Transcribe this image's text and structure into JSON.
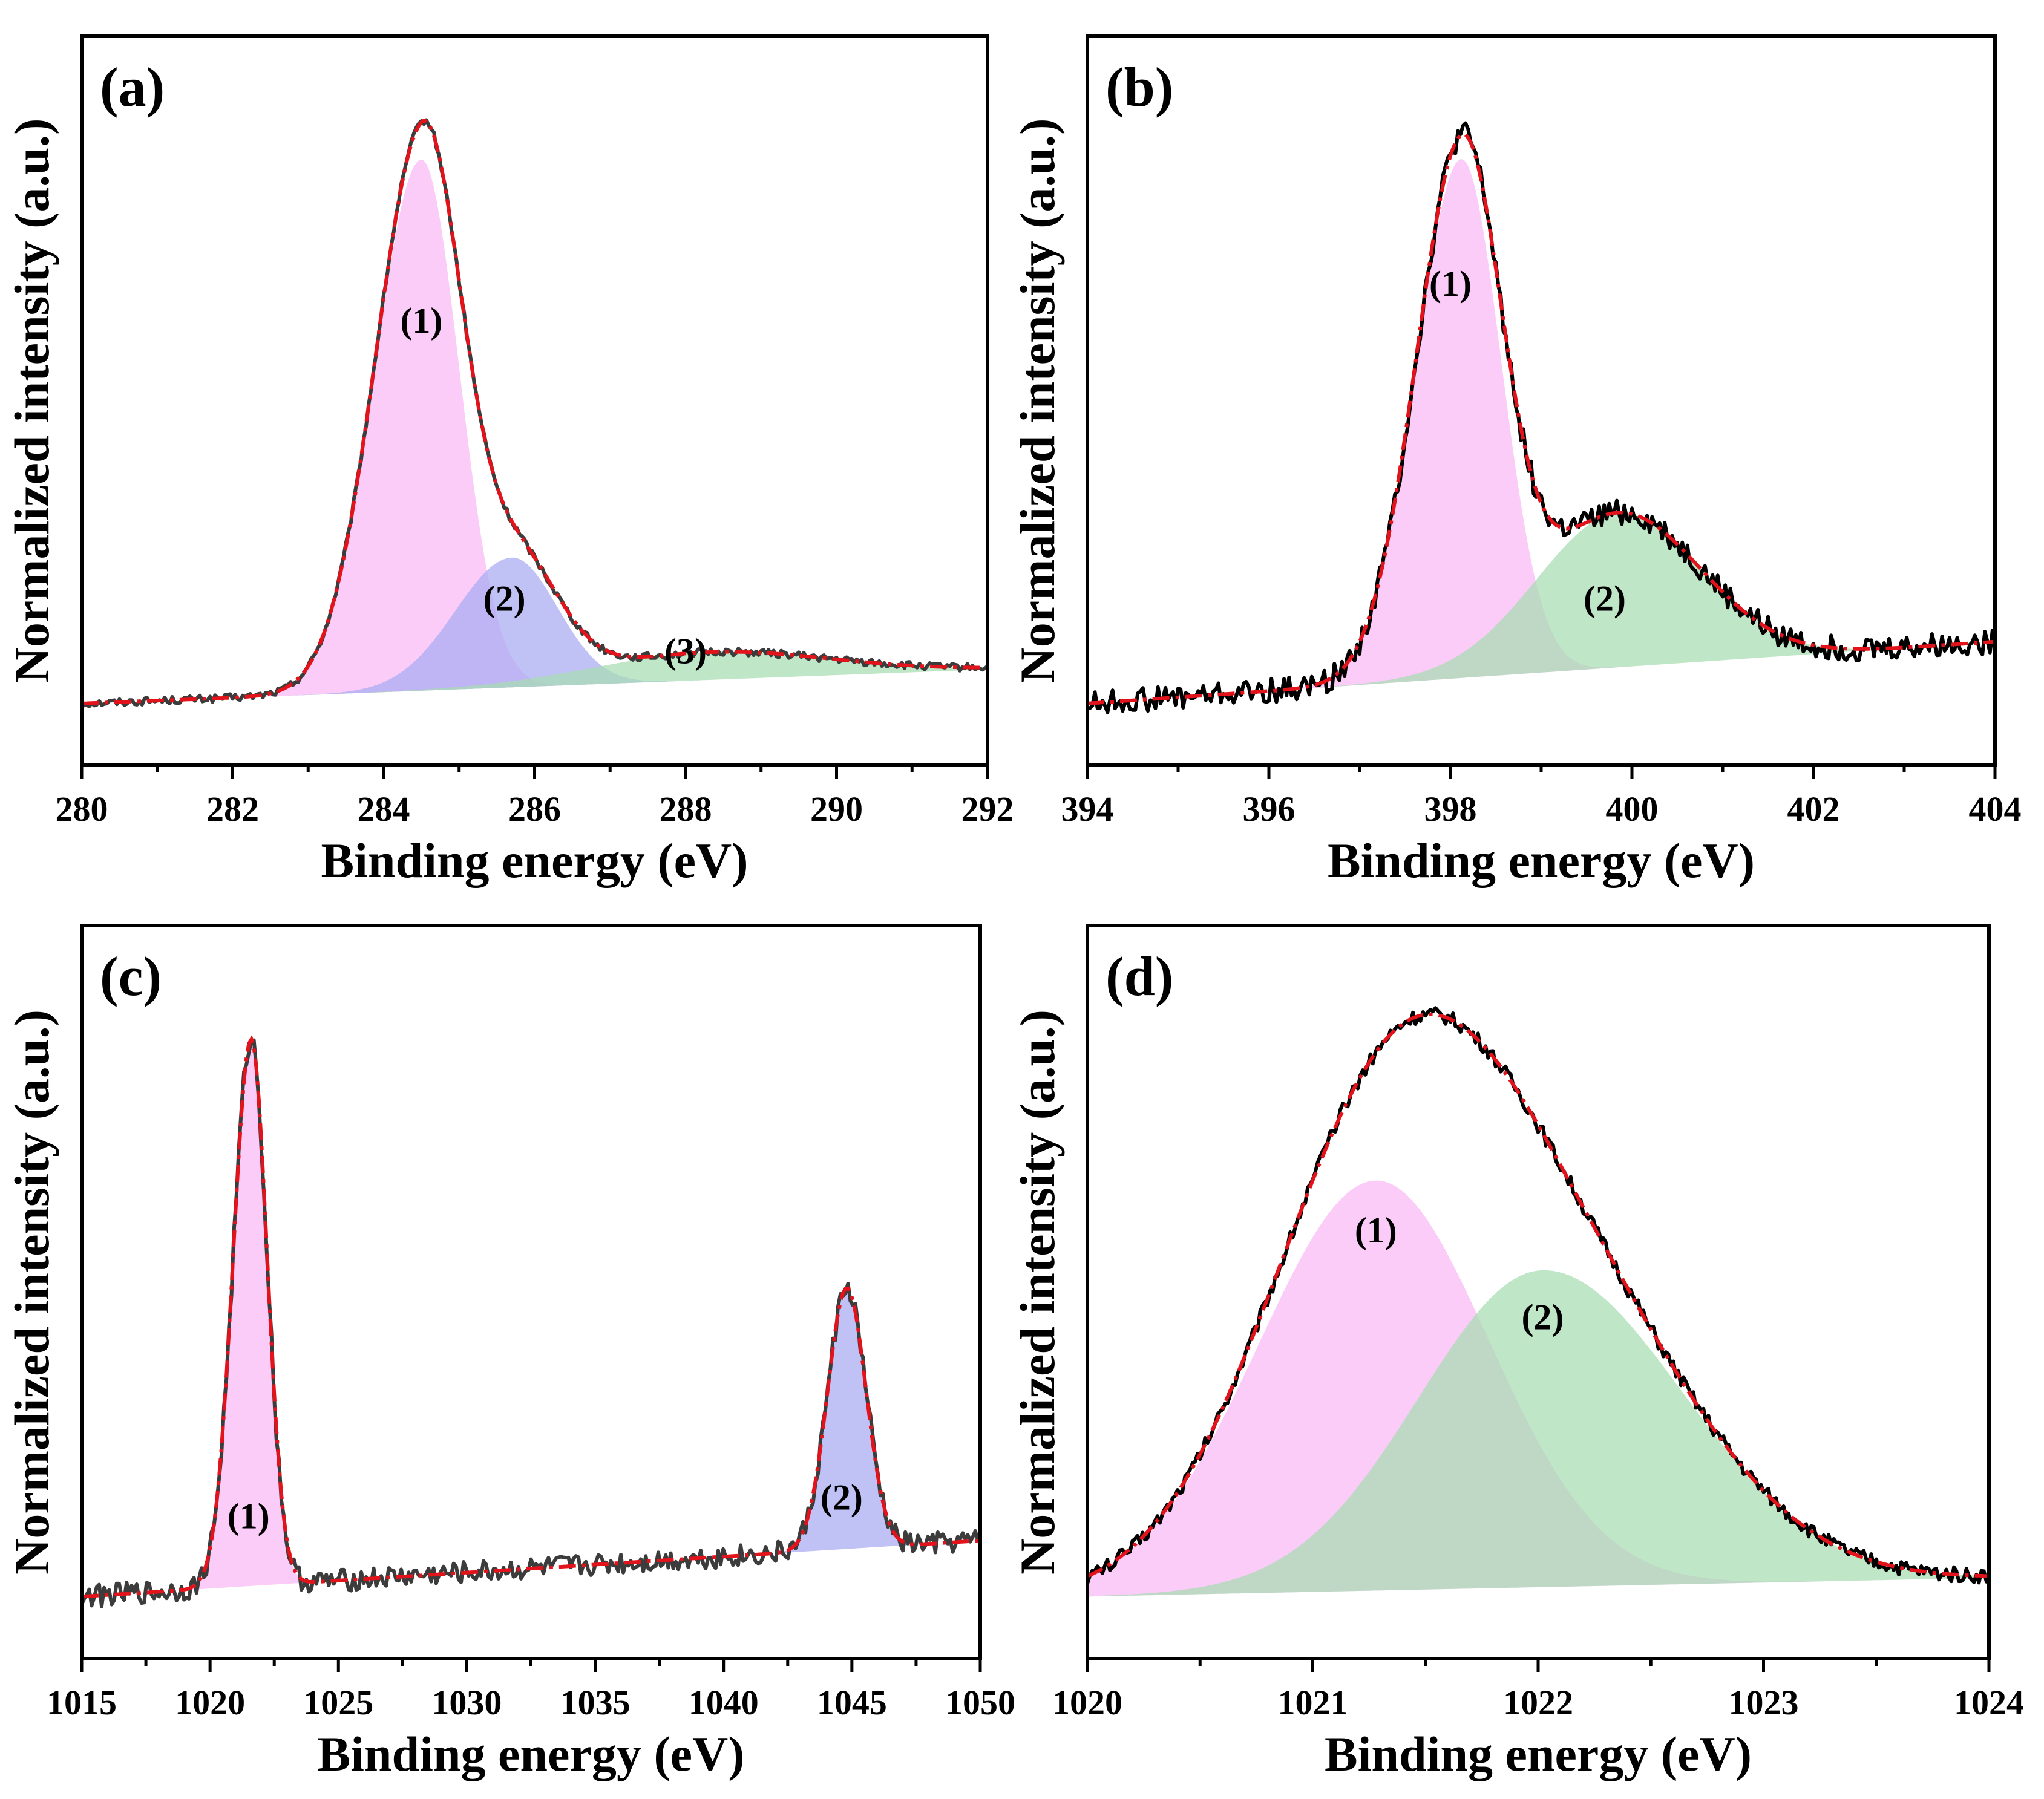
{
  "colors": {
    "pink": "#f9b9f5",
    "blue": "#a8aaf3",
    "green": "#a6dcb2",
    "data_dark": "#3c3c3c",
    "data_black": "#000000",
    "fit_red": "#e3131b"
  },
  "chart_data": [
    {
      "panel": "(a)",
      "type": "line",
      "xlabel": "Binding energy (eV)",
      "ylabel": "Normalized intensity (a.u.)",
      "xlim": [
        280,
        292
      ],
      "ylim": [
        -0.1,
        1.08
      ],
      "xticks": [
        280,
        282,
        284,
        286,
        288,
        290,
        292
      ],
      "xtick_labels": [
        "280",
        "282",
        "284",
        "286",
        "288",
        "290",
        "292"
      ],
      "baseline": {
        "x": [
          280,
          292
        ],
        "y": [
          0.0,
          0.055
        ]
      },
      "data_color": "data_dark",
      "noise": 0.006,
      "components": [
        {
          "label": "(1)",
          "center": 284.5,
          "amp": 0.86,
          "wl": 0.62,
          "wr": 0.5,
          "color": "pink",
          "label_x": 284.5,
          "label_y": 0.6
        },
        {
          "label": "(2)",
          "center": 285.7,
          "amp": 0.21,
          "wl": 0.75,
          "wr": 0.6,
          "color": "blue",
          "label_x": 285.6,
          "label_y": 0.15
        },
        {
          "label": "(3)",
          "center": 288.3,
          "amp": 0.045,
          "wl": 1.5,
          "wr": 1.6,
          "color": "green",
          "label_x": 288.0,
          "label_y": 0.065
        }
      ]
    },
    {
      "panel": "(b)",
      "type": "line",
      "xlabel": "Binding energy (eV)",
      "ylabel": "Normalized intensity (a.u.)",
      "xlim": [
        394,
        404
      ],
      "ylim": [
        -0.1,
        1.08
      ],
      "xticks": [
        394,
        396,
        398,
        400,
        402,
        404
      ],
      "xtick_labels": [
        "394",
        "396",
        "398",
        "400",
        "402",
        "404"
      ],
      "baseline": {
        "x": [
          394,
          404
        ],
        "y": [
          0.0,
          0.1
        ]
      },
      "data_color": "data_black",
      "noise": 0.02,
      "components": [
        {
          "label": "(1)",
          "center": 398.12,
          "amp": 0.84,
          "wl": 0.5,
          "wr": 0.44,
          "color": "pink",
          "label_x": 398.0,
          "label_y": 0.66
        },
        {
          "label": "(2)",
          "center": 399.85,
          "amp": 0.25,
          "wl": 0.9,
          "wr": 0.9,
          "color": "green",
          "label_x": 399.7,
          "label_y": 0.15
        }
      ]
    },
    {
      "panel": "(c)",
      "type": "line",
      "xlabel": "Binding energy (eV)",
      "ylabel": "Normalized intensity (a.u.)",
      "xlim": [
        1015,
        1050
      ],
      "ylim": [
        -0.1,
        1.08
      ],
      "xticks": [
        1015,
        1020,
        1025,
        1030,
        1035,
        1040,
        1045,
        1050
      ],
      "xtick_labels": [
        "1015",
        "1020",
        "1025",
        "1030",
        "1035",
        "1040",
        "1045",
        "1050"
      ],
      "baseline": {
        "x": [
          1015,
          1050
        ],
        "y": [
          0.0,
          0.09
        ]
      },
      "data_color": "data_dark",
      "noise": 0.018,
      "components": [
        {
          "label": "(1)",
          "center": 1021.6,
          "amp": 0.88,
          "wl": 0.7,
          "wr": 0.62,
          "color": "pink",
          "label_x": 1021.5,
          "label_y": 0.11
        },
        {
          "label": "(2)",
          "center": 1044.8,
          "amp": 0.42,
          "wl": 0.75,
          "wr": 0.75,
          "color": "blue",
          "label_x": 1044.6,
          "label_y": 0.14
        }
      ]
    },
    {
      "panel": "(d)",
      "type": "line",
      "xlabel": "Binding energy (eV)",
      "ylabel": "Normalized intensity (a.u.)",
      "xlim": [
        1020,
        1024
      ],
      "ylim": [
        -0.1,
        1.08
      ],
      "xticks": [
        1020,
        1021,
        1022,
        1023,
        1024
      ],
      "xtick_labels": [
        "1020",
        "1021",
        "1022",
        "1023",
        "1024"
      ],
      "baseline": {
        "x": [
          1020,
          1024
        ],
        "y": [
          0.0,
          0.03
        ]
      },
      "data_color": "data_black",
      "noise": 0.012,
      "components": [
        {
          "label": "(1)",
          "center": 1021.28,
          "amp": 0.66,
          "wl": 0.52,
          "wr": 0.5,
          "color": "pink",
          "label_x": 1021.28,
          "label_y": 0.57
        },
        {
          "label": "(2)",
          "center": 1022.02,
          "amp": 0.51,
          "wl": 0.55,
          "wr": 0.62,
          "color": "green",
          "label_x": 1022.02,
          "label_y": 0.43
        }
      ]
    }
  ]
}
